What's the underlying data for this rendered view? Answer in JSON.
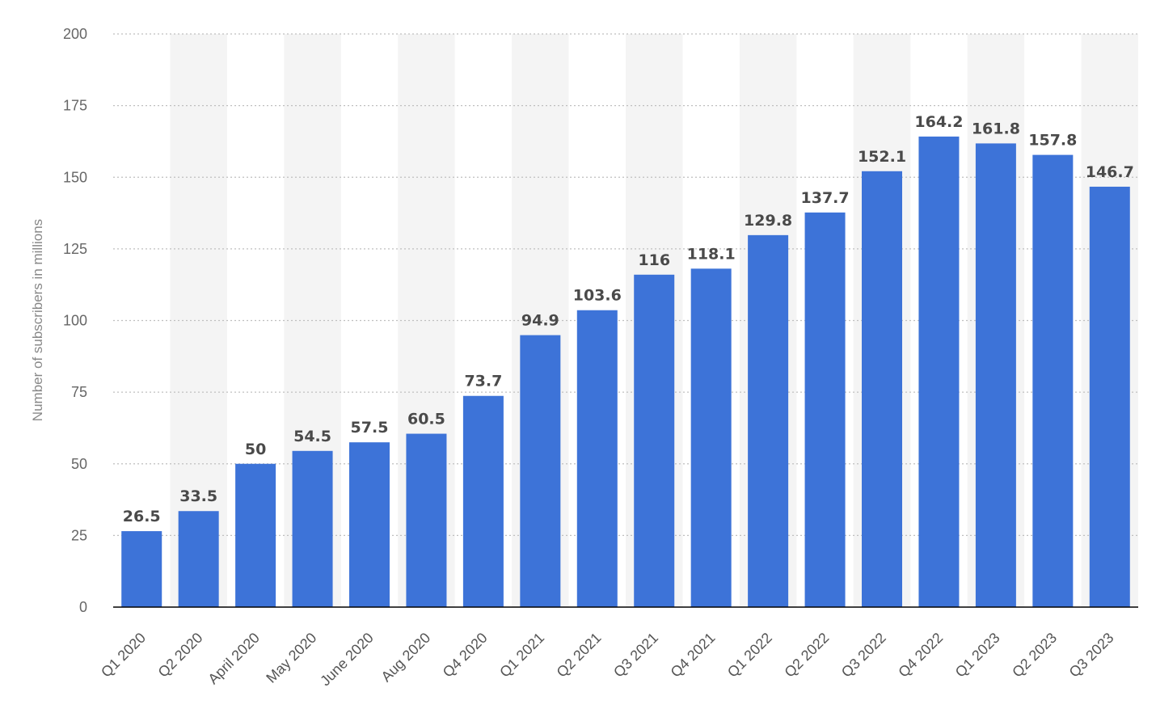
{
  "chart_data": {
    "type": "bar",
    "title": "",
    "xlabel": "",
    "ylabel": "Number of subscribers in millions",
    "ylim": [
      0,
      200
    ],
    "yticks": [
      0,
      25,
      50,
      75,
      100,
      125,
      150,
      175,
      200
    ],
    "grid": true,
    "categories": [
      "Q1 2020",
      "Q2 2020",
      "April 2020",
      "May 2020",
      "June 2020",
      "Aug 2020",
      "Q4 2020",
      "Q1 2021",
      "Q2 2021",
      "Q3 2021",
      "Q4 2021",
      "Q1 2022",
      "Q2 2022",
      "Q3 2022",
      "Q4 2022",
      "Q1 2023",
      "Q2 2023",
      "Q3 2023"
    ],
    "values": [
      26.5,
      33.5,
      50,
      54.5,
      57.5,
      60.5,
      73.7,
      94.9,
      103.6,
      116,
      118.1,
      129.8,
      137.7,
      152.1,
      164.2,
      161.8,
      157.8,
      146.7
    ],
    "value_labels": [
      "26.5",
      "33.5",
      "50",
      "54.5",
      "57.5",
      "60.5",
      "73.7",
      "94.9",
      "103.6",
      "116",
      "118.1",
      "129.8",
      "137.7",
      "152.1",
      "164.2",
      "161.8",
      "157.8",
      "146.7"
    ],
    "colors": {
      "bar": "#3d73d8",
      "band": "#f4f4f4",
      "grid": "#bfbfbf",
      "axis": "#000000"
    }
  }
}
